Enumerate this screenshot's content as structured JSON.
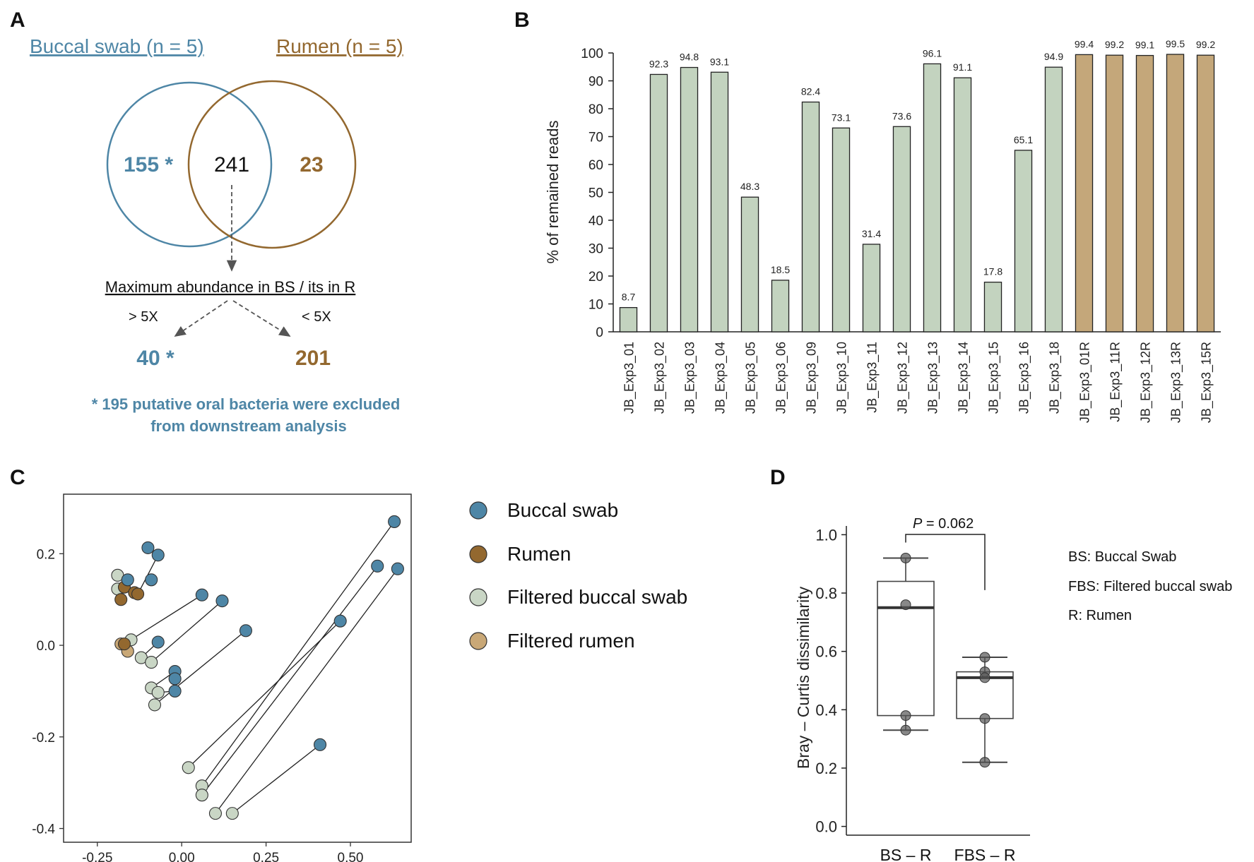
{
  "panel_letters": {
    "a": "A",
    "b": "B",
    "c": "C",
    "d": "D"
  },
  "colors": {
    "buccal": "#4e86a6",
    "rumen": "#93682f",
    "filtered_buccal": "#c9d6c5",
    "filtered_rumen": "#c9a877",
    "bar_green": "#c3d3bf",
    "bar_tan": "#c4a77a",
    "venn_blue": "#4e86a6",
    "venn_brown": "#93682f"
  },
  "venn": {
    "left_title": "Buccal swab (n = 5)",
    "right_title": "Rumen (n = 5)",
    "left_only": "155 *",
    "overlap": "241",
    "right_only": "23",
    "criterion": "Maximum abundance in BS / its in R",
    "gt_label": "> 5X",
    "lt_label": "< 5X",
    "gt_count": "40 *",
    "lt_count": "201",
    "footnote_line1": "* 195 putative oral bacteria were excluded",
    "footnote_line2": "from downstream analysis"
  },
  "chart_data": [
    {
      "id": "B",
      "type": "bar",
      "title": "",
      "xlabel": "",
      "ylabel": "% of remained reads",
      "ylim": [
        0,
        100
      ],
      "yticks": [
        0,
        10,
        20,
        30,
        40,
        50,
        60,
        70,
        80,
        90,
        100
      ],
      "categories": [
        "JB_Exp3_01",
        "JB_Exp3_02",
        "JB_Exp3_03",
        "JB_Exp3_04",
        "JB_Exp3_05",
        "JB_Exp3_06",
        "JB_Exp3_09",
        "JB_Exp3_10",
        "JB_Exp3_11",
        "JB_Exp3_12",
        "JB_Exp3_13",
        "JB_Exp3_14",
        "JB_Exp3_15",
        "JB_Exp3_16",
        "JB_Exp3_18",
        "JB_Exp3_01R",
        "JB_Exp3_11R",
        "JB_Exp3_12R",
        "JB_Exp3_13R",
        "JB_Exp3_15R"
      ],
      "values": [
        8.7,
        92.3,
        94.8,
        93.1,
        48.3,
        18.5,
        82.4,
        73.1,
        31.4,
        73.6,
        96.1,
        91.1,
        17.8,
        65.1,
        94.9,
        99.4,
        99.2,
        99.1,
        99.5,
        99.2
      ],
      "value_labels": [
        "8.7",
        "92.3",
        "94.8",
        "93.1",
        "48.3",
        "18.5",
        "82.4",
        "73.1",
        "31.4",
        "73.6",
        "96.1",
        "91.1",
        "17.8",
        "65.1",
        "94.9",
        "99.4",
        "99.2",
        "99.1",
        "99.5",
        "99.2"
      ],
      "groups": [
        "buccal",
        "buccal",
        "buccal",
        "buccal",
        "buccal",
        "buccal",
        "buccal",
        "buccal",
        "buccal",
        "buccal",
        "buccal",
        "buccal",
        "buccal",
        "buccal",
        "buccal",
        "rumen",
        "rumen",
        "rumen",
        "rumen",
        "rumen"
      ]
    },
    {
      "id": "C",
      "type": "scatter",
      "xlim": [
        -0.35,
        0.68
      ],
      "ylim": [
        -0.43,
        0.33
      ],
      "xticks": [
        -0.25,
        0.0,
        0.25,
        0.5
      ],
      "xtick_labels": [
        "-0.25",
        "0.00",
        "0.25",
        "0.50"
      ],
      "yticks": [
        -0.4,
        -0.2,
        0.0,
        0.2
      ],
      "ytick_labels": [
        "-0.4",
        "-0.2",
        "0.0",
        "0.2"
      ],
      "legend": [
        "Buccal swab",
        "Rumen",
        "Filtered buccal swab",
        "Filtered rumen"
      ],
      "points": {
        "buccal": [
          [
            -0.1,
            0.213
          ],
          [
            -0.07,
            0.197
          ],
          [
            -0.16,
            0.143
          ],
          [
            -0.09,
            0.143
          ],
          [
            0.06,
            0.11
          ],
          [
            0.12,
            0.097
          ],
          [
            0.19,
            0.032
          ],
          [
            -0.07,
            0.007
          ],
          [
            -0.02,
            -0.057
          ],
          [
            -0.02,
            -0.073
          ],
          [
            -0.02,
            -0.1
          ],
          [
            0.47,
            0.053
          ],
          [
            0.63,
            0.27
          ],
          [
            0.58,
            0.173
          ],
          [
            0.64,
            0.167
          ],
          [
            0.41,
            -0.217
          ]
        ],
        "rumen": [
          [
            -0.17,
            0.127
          ],
          [
            -0.14,
            0.115
          ],
          [
            -0.13,
            0.112
          ],
          [
            -0.18,
            0.1
          ],
          [
            -0.17,
            0.003
          ]
        ],
        "filtered_buccal": [
          [
            -0.19,
            0.153
          ],
          [
            -0.19,
            0.123
          ],
          [
            -0.15,
            0.012
          ],
          [
            -0.12,
            -0.027
          ],
          [
            -0.09,
            -0.037
          ],
          [
            -0.09,
            -0.093
          ],
          [
            -0.07,
            -0.103
          ],
          [
            -0.08,
            -0.13
          ],
          [
            0.02,
            -0.267
          ],
          [
            0.06,
            -0.307
          ],
          [
            0.06,
            -0.327
          ],
          [
            0.1,
            -0.367
          ],
          [
            0.15,
            -0.367
          ]
        ],
        "filtered_rumen": [
          [
            -0.18,
            0.003
          ],
          [
            -0.16,
            -0.013
          ]
        ]
      },
      "segments": [
        [
          [
            -0.16,
            0.143
          ],
          [
            -0.19,
            0.123
          ]
        ],
        [
          [
            -0.07,
            0.197
          ],
          [
            -0.13,
            0.112
          ]
        ],
        [
          [
            0.06,
            0.11
          ],
          [
            -0.17,
            0.003
          ]
        ],
        [
          [
            0.12,
            0.097
          ],
          [
            -0.09,
            -0.037
          ]
        ],
        [
          [
            0.19,
            0.032
          ],
          [
            -0.08,
            -0.13
          ]
        ],
        [
          [
            -0.07,
            0.007
          ],
          [
            -0.12,
            -0.027
          ]
        ],
        [
          [
            -0.02,
            -0.057
          ],
          [
            -0.09,
            -0.093
          ]
        ],
        [
          [
            -0.02,
            -0.1
          ],
          [
            -0.07,
            -0.103
          ]
        ],
        [
          [
            0.47,
            0.053
          ],
          [
            0.02,
            -0.267
          ]
        ],
        [
          [
            0.63,
            0.27
          ],
          [
            0.06,
            -0.307
          ]
        ],
        [
          [
            0.58,
            0.173
          ],
          [
            0.06,
            -0.327
          ]
        ],
        [
          [
            0.64,
            0.167
          ],
          [
            0.1,
            -0.367
          ]
        ],
        [
          [
            0.41,
            -0.217
          ],
          [
            0.15,
            -0.367
          ]
        ]
      ]
    },
    {
      "id": "D",
      "type": "box",
      "ylabel": "Bray – Curtis dissimilarity",
      "ylim": [
        -0.03,
        1.03
      ],
      "yticks": [
        0.0,
        0.2,
        0.4,
        0.6,
        0.8,
        1.0
      ],
      "ytick_labels": [
        "0.0",
        "0.2",
        "0.4",
        "0.6",
        "0.8",
        "1.0"
      ],
      "categories": [
        "BS – R",
        "FBS – R"
      ],
      "boxes": [
        {
          "name": "BS – R",
          "min": 0.33,
          "q1": 0.38,
          "median": 0.75,
          "q3": 0.84,
          "max": 0.92,
          "points": [
            0.92,
            0.76,
            0.38,
            0.33
          ]
        },
        {
          "name": "FBS – R",
          "min": 0.22,
          "q1": 0.37,
          "median": 0.51,
          "q3": 0.53,
          "max": 0.58,
          "points": [
            0.58,
            0.53,
            0.51,
            0.37,
            0.22
          ]
        }
      ],
      "p_label": "P",
      "p_value": " = 0.062",
      "abbreviations": [
        "BS: Buccal Swab",
        "FBS: Filtered buccal swab",
        "R: Rumen"
      ]
    }
  ]
}
